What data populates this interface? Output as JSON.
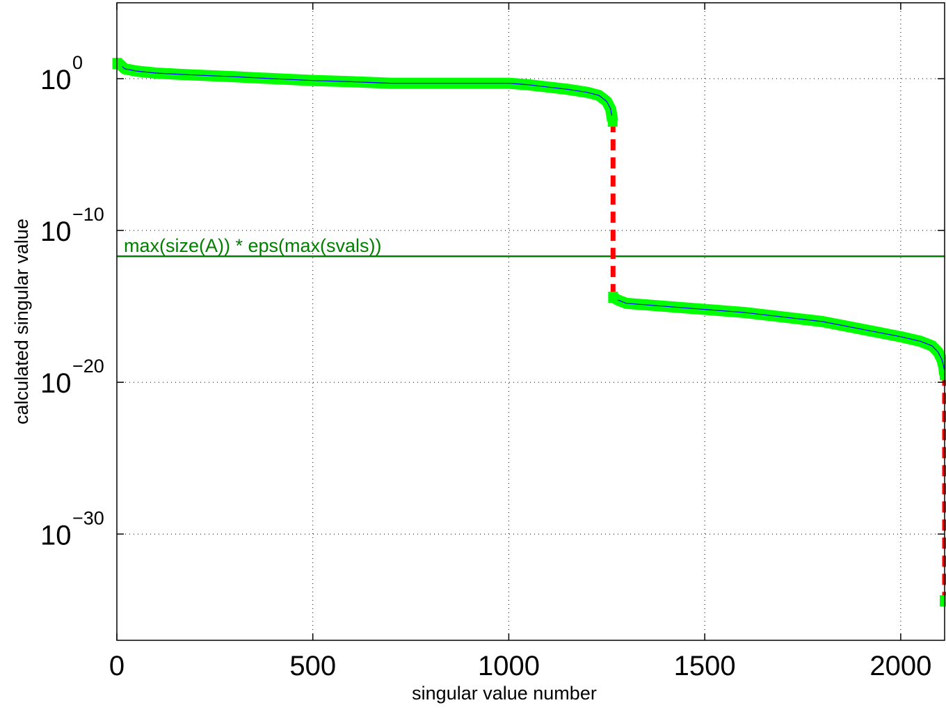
{
  "chart_data": {
    "type": "line",
    "title": "",
    "xlabel": "singular value number",
    "ylabel": "calculated singular value",
    "xlim": [
      0,
      2112
    ],
    "ylim_exponent": [
      -37,
      5
    ],
    "yscale": "log",
    "grid": true,
    "x_ticks": [
      {
        "value": 0,
        "label": "0"
      },
      {
        "value": 500,
        "label": "500"
      },
      {
        "value": 1000,
        "label": "1000"
      },
      {
        "value": 1500,
        "label": "1500"
      },
      {
        "value": 2000,
        "label": "2000"
      }
    ],
    "y_ticks": [
      {
        "exponent": 0,
        "base": "10",
        "power": "0"
      },
      {
        "exponent": -10,
        "base": "10",
        "power": "−10"
      },
      {
        "exponent": -20,
        "base": "10",
        "power": "−20"
      },
      {
        "exponent": -30,
        "base": "10",
        "power": "−30"
      }
    ],
    "annotation": {
      "text": "max(size(A)) * eps(max(svals))",
      "y_exponent": -11.7,
      "color": "#007f00"
    },
    "colors": {
      "markers": "#00ff00",
      "line": "#0000ff",
      "jump": "#ff0000",
      "threshold": "#007f00",
      "grid": "#000000"
    },
    "series": [
      {
        "points": [
          [
            1,
            1.0
          ],
          [
            8,
            0.95
          ],
          [
            20,
            0.65
          ],
          [
            50,
            0.5
          ],
          [
            100,
            0.37
          ],
          [
            150,
            0.3
          ],
          [
            200,
            0.24
          ],
          [
            300,
            0.13
          ],
          [
            400,
            0.0
          ],
          [
            500,
            -0.12
          ],
          [
            600,
            -0.2
          ],
          [
            700,
            -0.3
          ],
          [
            800,
            -0.3
          ],
          [
            900,
            -0.3
          ],
          [
            1000,
            -0.3
          ],
          [
            1050,
            -0.4
          ],
          [
            1100,
            -0.55
          ],
          [
            1150,
            -0.7
          ],
          [
            1200,
            -0.9
          ],
          [
            1230,
            -1.1
          ],
          [
            1250,
            -1.5
          ],
          [
            1260,
            -2.0
          ],
          [
            1265,
            -2.8
          ]
        ]
      },
      {
        "points": [
          [
            1266,
            -14.4
          ],
          [
            1280,
            -14.6
          ],
          [
            1300,
            -14.8
          ],
          [
            1400,
            -15.0
          ],
          [
            1500,
            -15.2
          ],
          [
            1600,
            -15.4
          ],
          [
            1700,
            -15.7
          ],
          [
            1800,
            -16.0
          ],
          [
            1900,
            -16.5
          ],
          [
            2000,
            -17.0
          ],
          [
            2050,
            -17.3
          ],
          [
            2080,
            -17.6
          ],
          [
            2095,
            -18.0
          ],
          [
            2105,
            -18.5
          ],
          [
            2110,
            -19.0
          ],
          [
            2112,
            -19.5
          ]
        ]
      },
      {
        "points": [
          [
            2112,
            -34.4
          ]
        ]
      }
    ],
    "jumps": [
      {
        "x": 1266,
        "from": -2.8,
        "to": -14.4
      },
      {
        "x": 2112,
        "from": -19.5,
        "to": -34.4
      }
    ]
  }
}
